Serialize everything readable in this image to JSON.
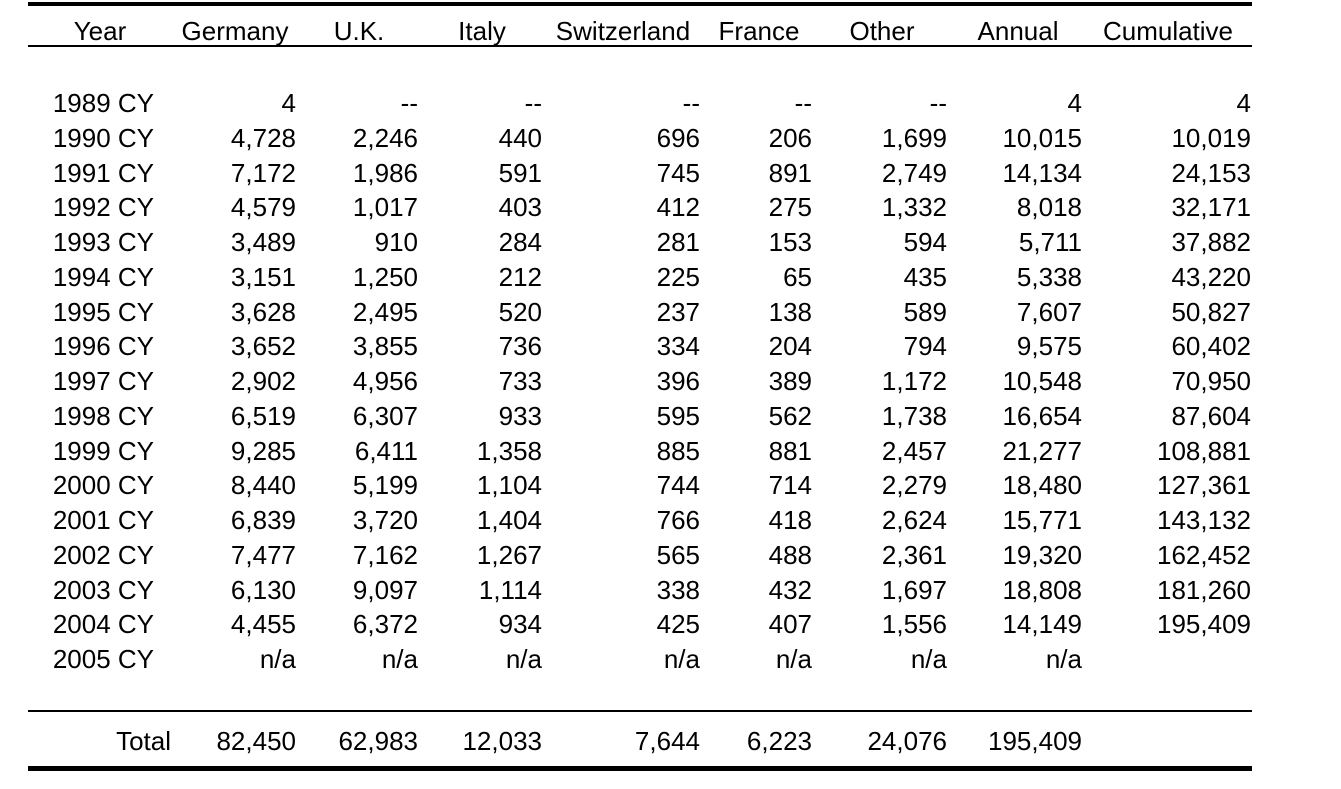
{
  "table": {
    "headers": [
      "Year",
      "Germany",
      "U.K.",
      "Italy",
      "Switzerland",
      "France",
      "Other",
      "Annual",
      "Cumulative"
    ],
    "rows": [
      [
        "1989 CY",
        "4",
        "--",
        "--",
        "--",
        "--",
        "--",
        "4",
        "4"
      ],
      [
        "1990 CY",
        "4,728",
        "2,246",
        "440",
        "696",
        "206",
        "1,699",
        "10,015",
        "10,019"
      ],
      [
        "1991 CY",
        "7,172",
        "1,986",
        "591",
        "745",
        "891",
        "2,749",
        "14,134",
        "24,153"
      ],
      [
        "1992 CY",
        "4,579",
        "1,017",
        "403",
        "412",
        "275",
        "1,332",
        "8,018",
        "32,171"
      ],
      [
        "1993 CY",
        "3,489",
        "910",
        "284",
        "281",
        "153",
        "594",
        "5,711",
        "37,882"
      ],
      [
        "1994 CY",
        "3,151",
        "1,250",
        "212",
        "225",
        "65",
        "435",
        "5,338",
        "43,220"
      ],
      [
        "1995 CY",
        "3,628",
        "2,495",
        "520",
        "237",
        "138",
        "589",
        "7,607",
        "50,827"
      ],
      [
        "1996 CY",
        "3,652",
        "3,855",
        "736",
        "334",
        "204",
        "794",
        "9,575",
        "60,402"
      ],
      [
        "1997 CY",
        "2,902",
        "4,956",
        "733",
        "396",
        "389",
        "1,172",
        "10,548",
        "70,950"
      ],
      [
        "1998 CY",
        "6,519",
        "6,307",
        "933",
        "595",
        "562",
        "1,738",
        "16,654",
        "87,604"
      ],
      [
        "1999 CY",
        "9,285",
        "6,411",
        "1,358",
        "885",
        "881",
        "2,457",
        "21,277",
        "108,881"
      ],
      [
        "2000 CY",
        "8,440",
        "5,199",
        "1,104",
        "744",
        "714",
        "2,279",
        "18,480",
        "127,361"
      ],
      [
        "2001 CY",
        "6,839",
        "3,720",
        "1,404",
        "766",
        "418",
        "2,624",
        "15,771",
        "143,132"
      ],
      [
        "2002 CY",
        "7,477",
        "7,162",
        "1,267",
        "565",
        "488",
        "2,361",
        "19,320",
        "162,452"
      ],
      [
        "2003 CY",
        "6,130",
        "9,097",
        "1,114",
        "338",
        "432",
        "1,697",
        "18,808",
        "181,260"
      ],
      [
        "2004 CY",
        "4,455",
        "6,372",
        "934",
        "425",
        "407",
        "1,556",
        "14,149",
        "195,409"
      ],
      [
        "2005 CY",
        "n/a",
        "n/a",
        "n/a",
        "n/a",
        "n/a",
        "n/a",
        "n/a",
        ""
      ]
    ],
    "total": [
      "Total",
      "82,450",
      "62,983",
      "12,033",
      "7,644",
      "6,223",
      "24,076",
      "195,409",
      ""
    ]
  }
}
